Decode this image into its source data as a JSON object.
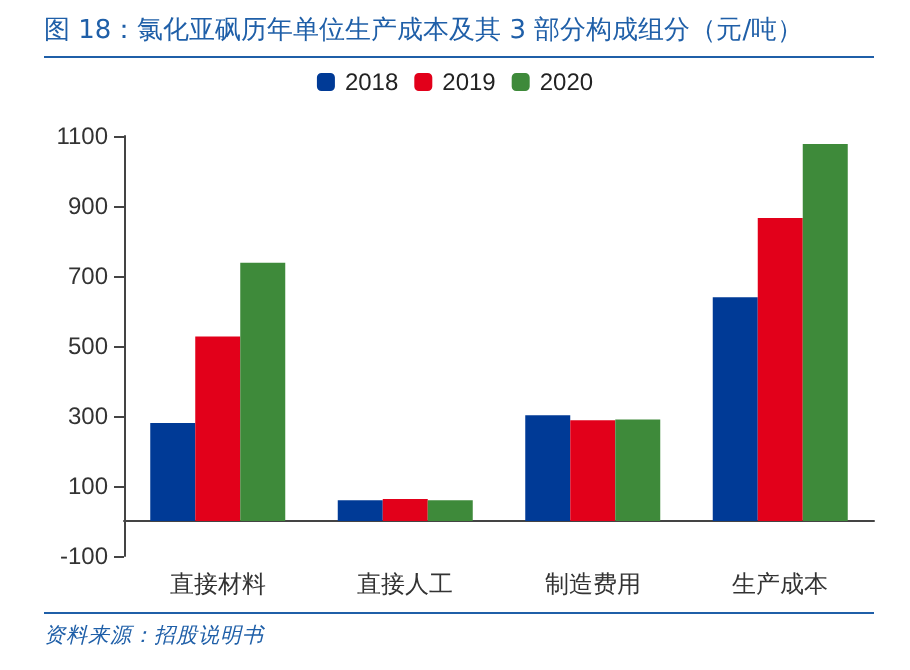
{
  "chart_data": {
    "type": "bar",
    "title": "图 18：氯化亚砜历年单位生产成本及其 3 部分构成组分（元/吨）",
    "annotations": [
      "资料来源：招股说明书"
    ],
    "categories": [
      "直接材料",
      "直接人工",
      "制造费用",
      "生产成本"
    ],
    "series": [
      {
        "name": "2018",
        "color": "#003a96",
        "values": [
          280,
          59,
          302,
          639
        ]
      },
      {
        "name": "2019",
        "color": "#e2001a",
        "values": [
          527,
          63,
          288,
          866
        ]
      },
      {
        "name": "2020",
        "color": "#3e8a3a",
        "values": [
          738,
          59,
          290,
          1077
        ]
      }
    ],
    "ylim": [
      -100,
      1100
    ],
    "yticks": [
      -100,
      100,
      300,
      500,
      700,
      900,
      1100
    ],
    "grid": false,
    "legend": "top"
  }
}
